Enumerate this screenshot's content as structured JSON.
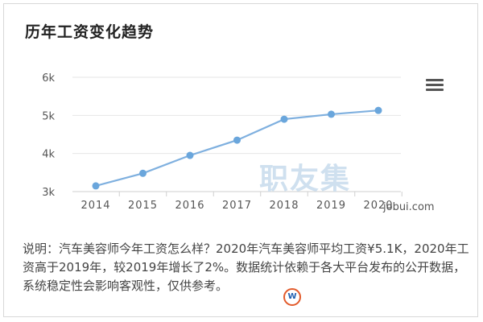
{
  "card": {
    "title": "历年工资变化趋势",
    "menu_icon": "hamburger-menu-icon"
  },
  "chart_data": {
    "type": "line",
    "title": "历年工资变化趋势",
    "xlabel": "",
    "ylabel": "",
    "categories": [
      "2014",
      "2015",
      "2016",
      "2017",
      "2018",
      "2019",
      "2020"
    ],
    "values": [
      3.15,
      3.48,
      3.95,
      4.35,
      4.9,
      5.03,
      5.13
    ],
    "yticks": [
      "3k",
      "4k",
      "5k",
      "6k"
    ],
    "ylim": [
      3,
      6
    ],
    "grid": true,
    "line_color": "#7fb0df",
    "point_color": "#6aa6dc"
  },
  "watermark": {
    "text": "职友集",
    "site": "jobui.com"
  },
  "description": "说明：汽车美容师今年工资怎么样？2020年汽车美容师平均工资¥5.1K，2020年工资高于2019年，较2019年增长了2%。数据统计依赖于各大平台发布的公开数据，系统稳定性会影响客观性，仅供参考。",
  "logo": {
    "letter": "W"
  }
}
